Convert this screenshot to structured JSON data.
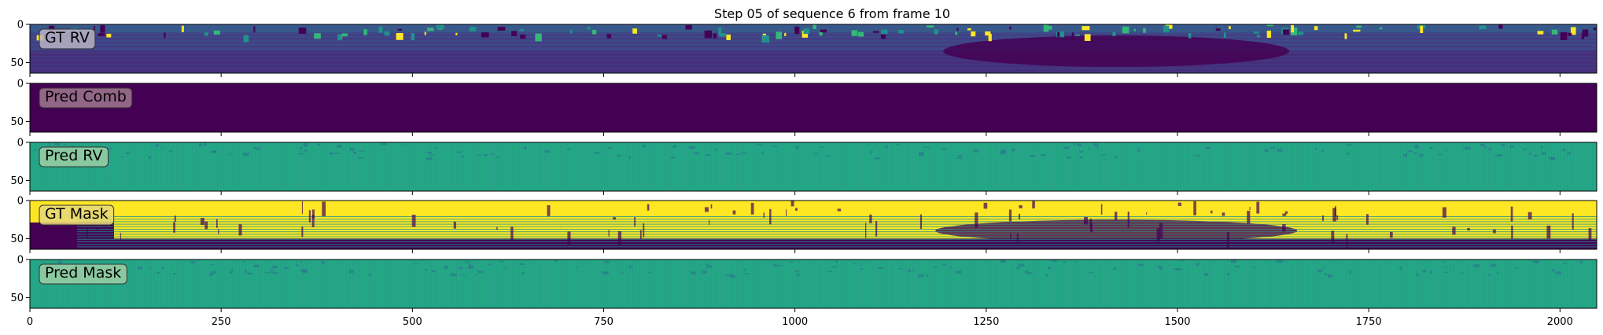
{
  "chart_data": {
    "type": "heatmap",
    "title": "Step 05 of sequence 6 from frame 10",
    "colormap": "viridis",
    "shared_x": {
      "xlim": [
        0,
        2048
      ],
      "ticks": [
        0,
        250,
        500,
        750,
        1000,
        1250,
        1500,
        1750,
        2000
      ],
      "tick_labels": [
        "0",
        "250",
        "500",
        "750",
        "1000",
        "1250",
        "1500",
        "1750",
        "2000"
      ]
    },
    "y_axis": {
      "ylim": [
        0,
        64
      ],
      "ticks": [
        0,
        50
      ],
      "tick_labels": [
        "0",
        "50"
      ]
    },
    "panels": [
      {
        "label": "GT RV",
        "label_box_color": "#b9b3c4",
        "base_color": "#3b4f8a",
        "description": "range image"
      },
      {
        "label": "Pred Comb",
        "label_box_color": "#a1778f",
        "base_color": "#440154"
      },
      {
        "label": "Pred RV",
        "label_box_color": "#9ccfa5",
        "base_color": "#22a884"
      },
      {
        "label": "GT Mask",
        "label_box_color": "#e6d77a",
        "base_color": "#fde725"
      },
      {
        "label": "Pred Mask",
        "label_box_color": "#9ccfa5",
        "base_color": "#21a685"
      }
    ]
  }
}
